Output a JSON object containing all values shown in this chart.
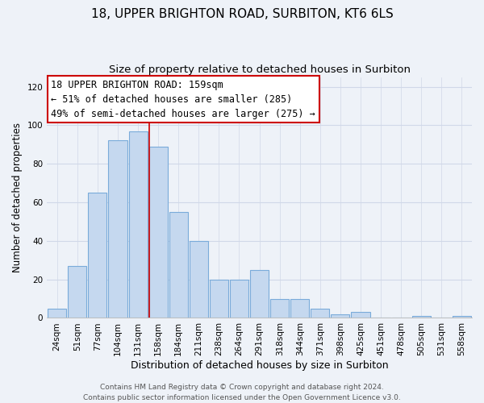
{
  "title": "18, UPPER BRIGHTON ROAD, SURBITON, KT6 6LS",
  "subtitle": "Size of property relative to detached houses in Surbiton",
  "xlabel": "Distribution of detached houses by size in Surbiton",
  "ylabel": "Number of detached properties",
  "footer_lines": [
    "Contains HM Land Registry data © Crown copyright and database right 2024.",
    "Contains public sector information licensed under the Open Government Licence v3.0."
  ],
  "categories": [
    "24sqm",
    "51sqm",
    "77sqm",
    "104sqm",
    "131sqm",
    "158sqm",
    "184sqm",
    "211sqm",
    "238sqm",
    "264sqm",
    "291sqm",
    "318sqm",
    "344sqm",
    "371sqm",
    "398sqm",
    "425sqm",
    "451sqm",
    "478sqm",
    "505sqm",
    "531sqm",
    "558sqm"
  ],
  "values": [
    5,
    27,
    65,
    92,
    97,
    89,
    55,
    40,
    20,
    20,
    25,
    10,
    10,
    5,
    2,
    3,
    0,
    0,
    1,
    0,
    1
  ],
  "bar_color": "#c5d8ef",
  "bar_edge_color": "#7aabda",
  "highlight_index": 5,
  "highlight_line_color": "#cc0000",
  "annotation_box_text": "18 UPPER BRIGHTON ROAD: 159sqm\n← 51% of detached houses are smaller (285)\n49% of semi-detached houses are larger (275) →",
  "annotation_box_edge_color": "#cc0000",
  "annotation_box_bg": "#ffffff",
  "ylim": [
    0,
    125
  ],
  "yticks": [
    0,
    20,
    40,
    60,
    80,
    100,
    120
  ],
  "background_color": "#eef2f8",
  "grid_color": "#d0d8e8",
  "title_fontsize": 11,
  "subtitle_fontsize": 9.5,
  "xlabel_fontsize": 9,
  "ylabel_fontsize": 8.5,
  "tick_fontsize": 7.5,
  "footer_fontsize": 6.5,
  "annotation_fontsize": 8.5
}
